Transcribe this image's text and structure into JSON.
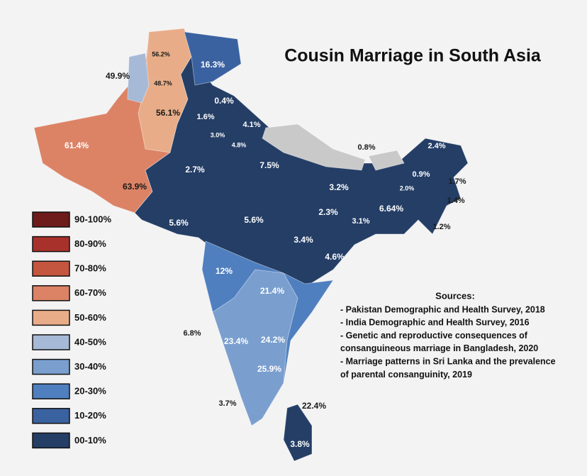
{
  "title": "Cousin Marriage in South Asia",
  "legend": [
    {
      "label": "90-100%",
      "color": "#6e1b1b"
    },
    {
      "label": "80-90%",
      "color": "#a8322b"
    },
    {
      "label": "70-80%",
      "color": "#c4563f"
    },
    {
      "label": "60-70%",
      "color": "#dc8366"
    },
    {
      "label": "50-60%",
      "color": "#e8ad88"
    },
    {
      "label": "40-50%",
      "color": "#a6b9d6"
    },
    {
      "label": "30-40%",
      "color": "#7a9fcf"
    },
    {
      "label": "20-30%",
      "color": "#4f7fbf"
    },
    {
      "label": "10-20%",
      "color": "#3a62a0"
    },
    {
      "label": "00-10%",
      "color": "#243e66"
    }
  ],
  "regions": [
    "56.2%",
    "16.3%",
    "49.9%",
    "48.7%",
    "0.4%",
    "56.1%",
    "1.6%",
    "4.1%",
    "3.0%",
    "4.8%",
    "61.4%",
    "0.8%",
    "2.4%",
    "2.7%",
    "7.5%",
    "0.9%",
    "1.7%",
    "2.0%",
    "3.2%",
    "63.9%",
    "1.4%",
    "6.64%",
    "2.3%",
    "3.1%",
    "5.6%",
    "5.6%",
    "1.2%",
    "3.4%",
    "4.6%",
    "12%",
    "21.4%",
    "6.8%",
    "23.4%",
    "24.2%",
    "25.9%",
    "3.7%",
    "22.4%",
    "3.8%"
  ],
  "sources": {
    "heading": "Sources:",
    "items": [
      [
        "- Pakistan Demographic and Health Survey, 2018"
      ],
      [
        "- India Demographic and Health Survey, 2016"
      ],
      [
        "- Genetic and reproductive consequences of",
        "consanguineous marriage in Bangladesh, 2020"
      ],
      [
        "- Marriage patterns in Sri Lanka and the prevalence",
        "of parental consanguinity, 2019"
      ]
    ]
  }
}
